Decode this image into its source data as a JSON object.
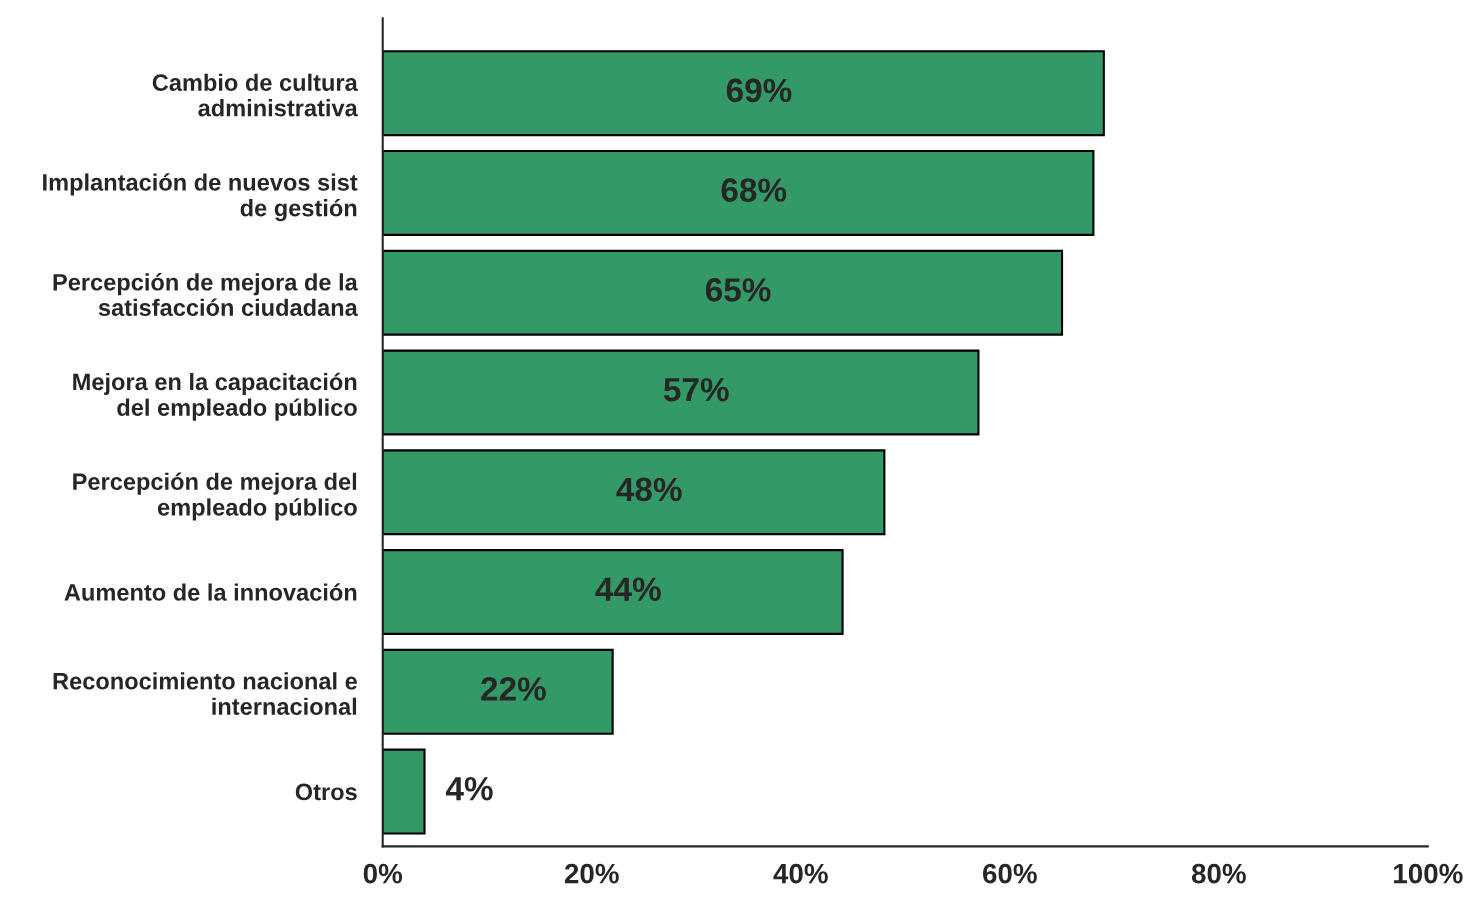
{
  "chart_data": {
    "type": "bar",
    "orientation": "horizontal",
    "categories": [
      "Cambio de cultura\nadministrativa",
      "Implantación de nuevos sist\nde gestión",
      "Percepción de mejora de la\nsatisfacción ciudadana",
      "Mejora en la capacitación\ndel empleado público",
      "Percepción de mejora del\nempleado público",
      "Aumento de la innovación",
      "Reconocimiento nacional e\ninternacional",
      "Otros"
    ],
    "values": [
      69,
      68,
      65,
      57,
      48,
      44,
      22,
      4
    ],
    "value_labels": [
      "69%",
      "68%",
      "65%",
      "57%",
      "48%",
      "44%",
      "22%",
      "4%"
    ],
    "color": "#339966",
    "xlim": [
      0,
      100
    ],
    "xticks": [
      {
        "value": 0,
        "label": "0%"
      },
      {
        "value": 20,
        "label": "20%"
      },
      {
        "value": 40,
        "label": "40%"
      },
      {
        "value": 60,
        "label": "60%"
      },
      {
        "value": 80,
        "label": "80%"
      },
      {
        "value": 100,
        "label": "100%"
      }
    ],
    "grid": false,
    "legend": false
  }
}
